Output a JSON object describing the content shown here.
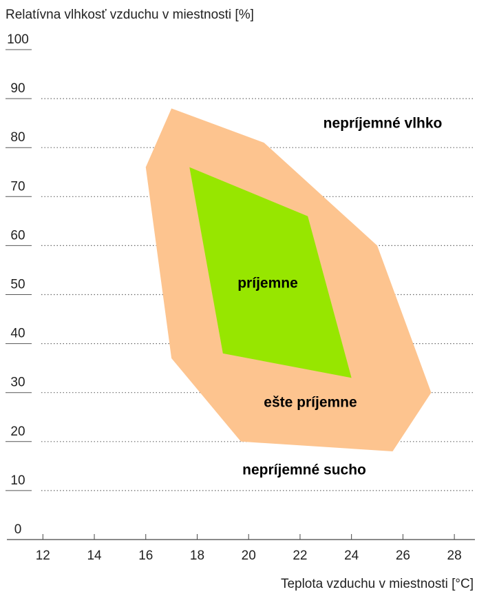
{
  "chart_data": {
    "type": "polygon",
    "y_axis_label": "Relatívna vlhkosť vzduchu v miestnosti [%]",
    "x_axis_label": "Teplota vzduchu v miestnosti [°C]",
    "xlim": [
      10.6,
      28.8
    ],
    "ylim": [
      0,
      100
    ],
    "xticks": [
      12,
      14,
      16,
      18,
      20,
      22,
      24,
      26,
      28
    ],
    "yticks": [
      0,
      10,
      20,
      30,
      40,
      50,
      60,
      70,
      80,
      90,
      100
    ],
    "grid": true,
    "series": [
      {
        "name": "ešte príjemne",
        "color": "#fdc48f",
        "x": [
          17.0,
          20.6,
          25.0,
          27.1,
          25.6,
          19.7,
          17.0,
          16.0
        ],
        "values": [
          88,
          81,
          60,
          30,
          18,
          20,
          37,
          76
        ]
      },
      {
        "name": "príjemne",
        "color": "#97e600",
        "x": [
          17.7,
          22.3,
          24.0,
          19.0
        ],
        "values": [
          76,
          66,
          33,
          38
        ]
      }
    ],
    "annotations": [
      "nepríjemné vlhko",
      "nepríjemné sucho"
    ]
  }
}
